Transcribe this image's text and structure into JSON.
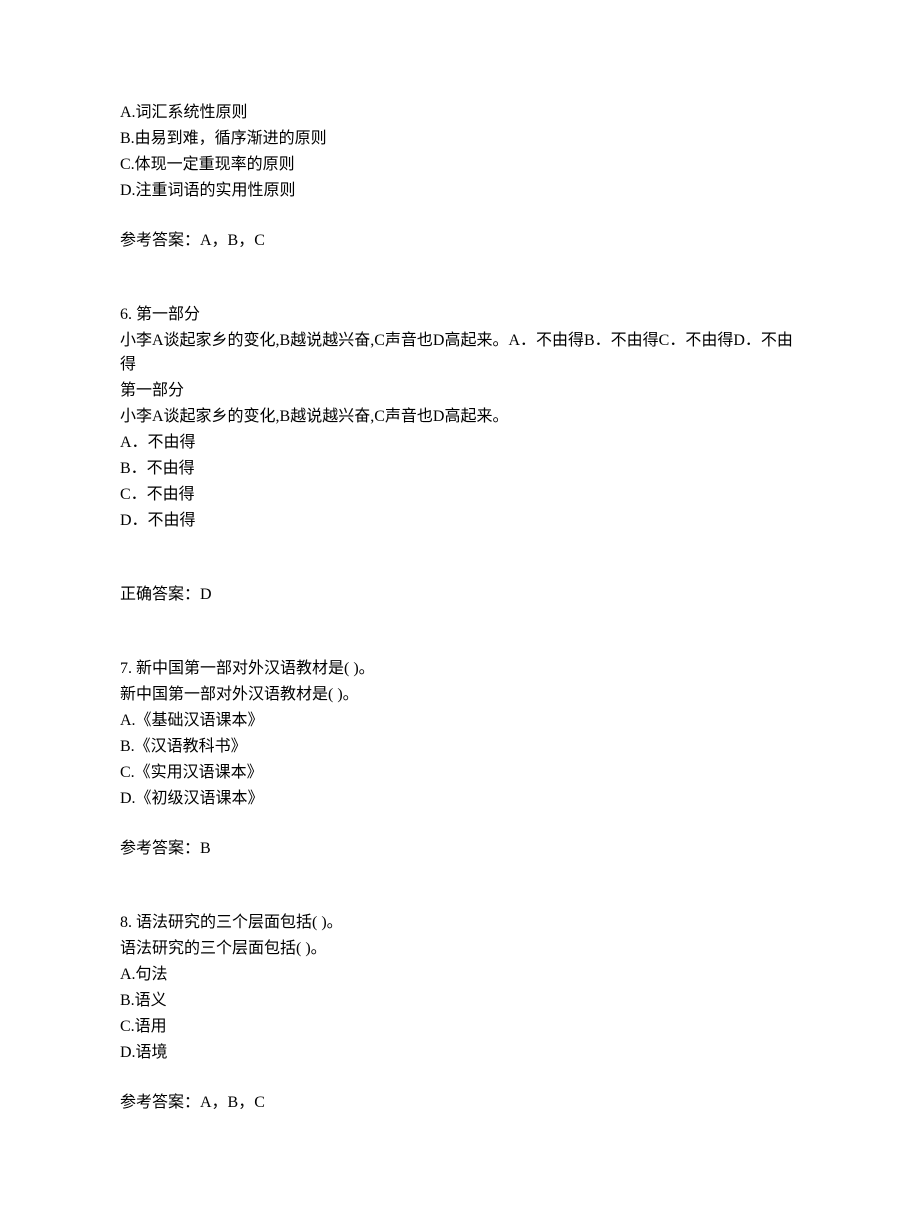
{
  "q5_remainder": {
    "options": [
      "A.词汇系统性原则",
      "B.由易到难，循序渐进的原则",
      "C.体现一定重现率的原则",
      "D.注重词语的实用性原则"
    ],
    "answer_label": "参考答案：A，B，C"
  },
  "q6": {
    "number_label": "6.  第一部分",
    "stem1": "小李A谈起家乡的变化,B越说越兴奋,C声音也D高起来。A．不由得B．不由得C．不由得D．不由得",
    "repeat_header": "第一部分",
    "stem2": "小李A谈起家乡的变化,B越说越兴奋,C声音也D高起来。",
    "options": [
      "A．不由得",
      "B．不由得",
      "C．不由得",
      "D．不由得"
    ],
    "answer_label": "正确答案：D"
  },
  "q7": {
    "number_label": "7.  新中国第一部对外汉语教材是(  )。",
    "stem_repeat": "新中国第一部对外汉语教材是(  )。",
    "options": [
      "A.《基础汉语课本》",
      "B.《汉语教科书》",
      "C.《实用汉语课本》",
      "D.《初级汉语课本》"
    ],
    "answer_label": "参考答案：B"
  },
  "q8": {
    "number_label": "8.  语法研究的三个层面包括(  )。",
    "stem_repeat": "语法研究的三个层面包括(  )。",
    "options": [
      "A.句法",
      "B.语义",
      "C.语用",
      "D.语境"
    ],
    "answer_label": "参考答案：A，B，C"
  }
}
